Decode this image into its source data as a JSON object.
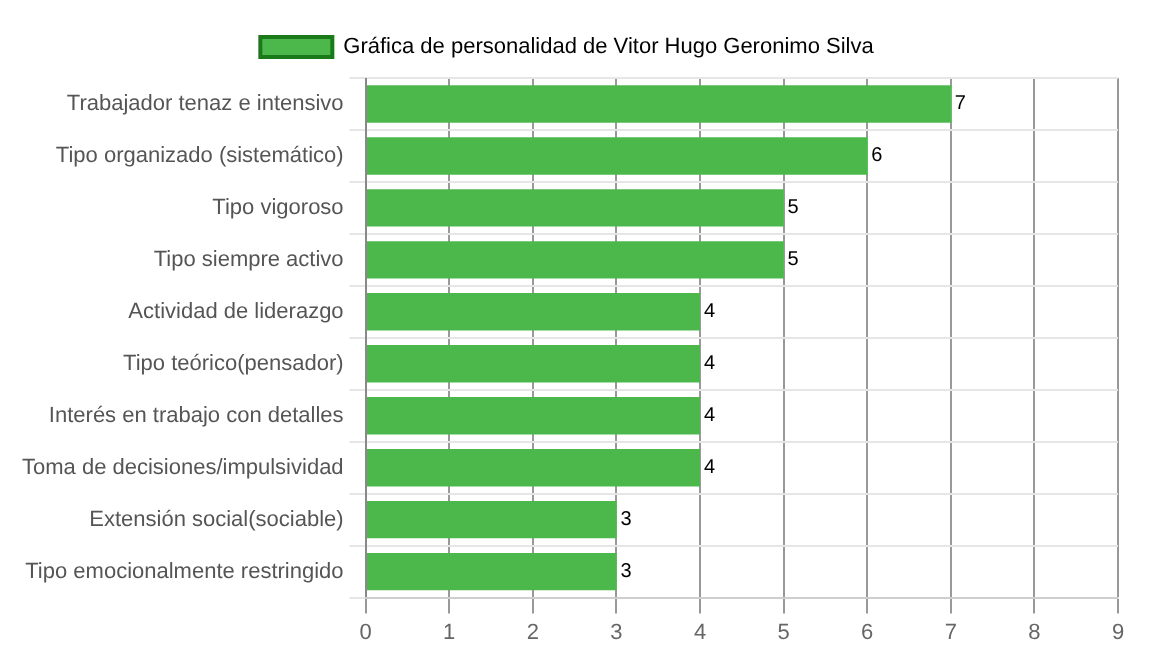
{
  "chart_data": {
    "type": "bar",
    "orientation": "horizontal",
    "categories": [
      "Trabajador tenaz e intensivo",
      "Tipo organizado (sistemático)",
      "Tipo vigoroso",
      "Tipo siempre activo",
      "Actividad de liderazgo",
      "Tipo teórico(pensador)",
      "Interés en trabajo con detalles",
      "Toma de decisiones/impulsividad",
      "Extensión social(sociable)",
      "Tipo emocionalmente restringido"
    ],
    "series": [
      {
        "name": "Gráfica de personalidad de Vitor Hugo Geronimo Silva",
        "color": "#4cb84c",
        "values": [
          7,
          6,
          5,
          5,
          4,
          4,
          4,
          4,
          3,
          3
        ]
      }
    ],
    "xlim": [
      0,
      9
    ],
    "xticks": [
      0,
      1,
      2,
      3,
      4,
      5,
      6,
      7,
      8,
      9
    ],
    "grid": true,
    "legend": "top",
    "data_labels": true
  }
}
